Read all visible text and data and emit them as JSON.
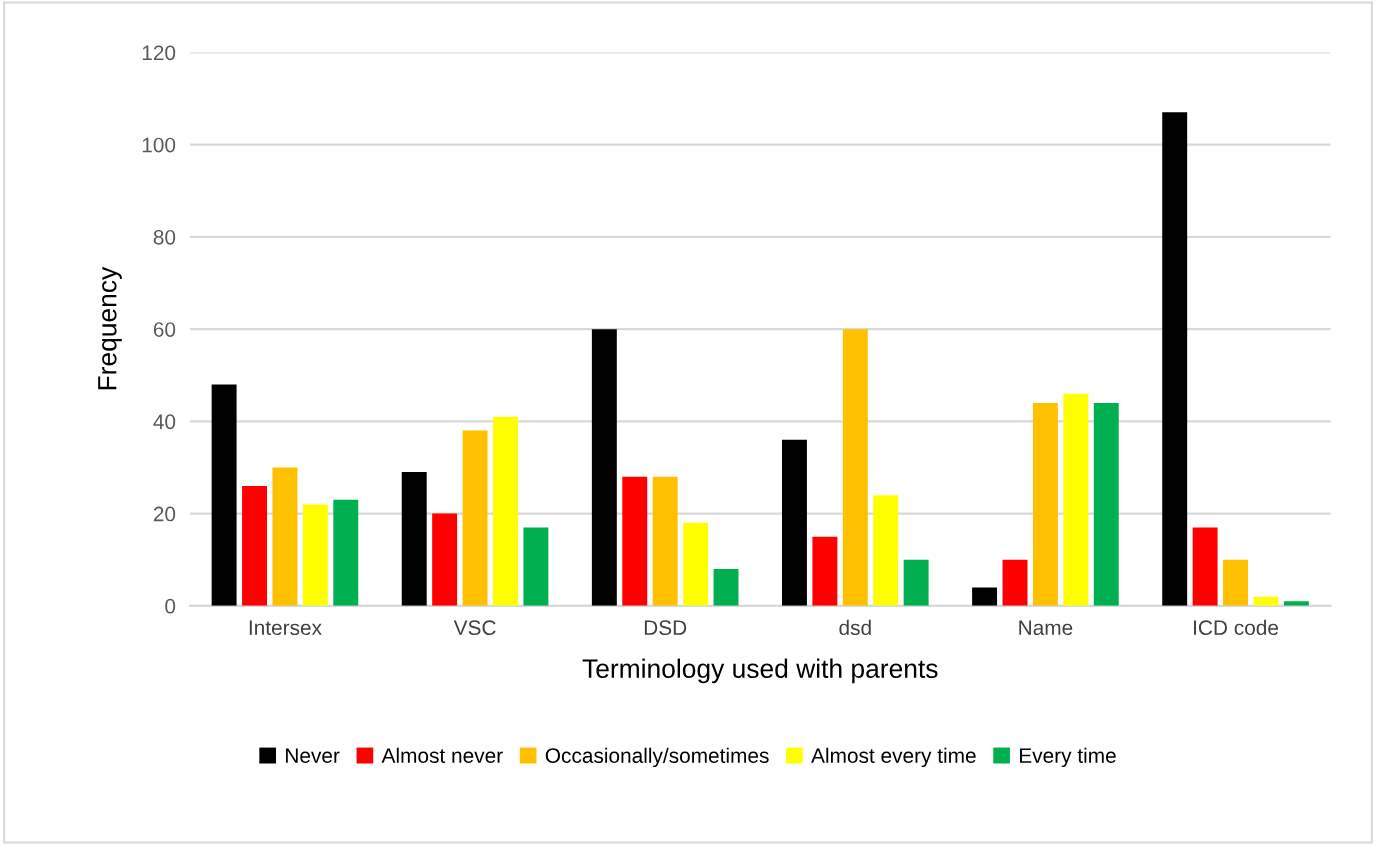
{
  "chart_data": {
    "type": "bar",
    "xlabel": "Terminology used with parents",
    "ylabel": "Frequency",
    "categories": [
      "Intersex",
      "VSC",
      "DSD",
      "dsd",
      "Name",
      "ICD code"
    ],
    "series": [
      {
        "name": "Never",
        "color": "#000000",
        "values": [
          48,
          29,
          60,
          36,
          4,
          107
        ]
      },
      {
        "name": "Almost never",
        "color": "#ff0000",
        "values": [
          26,
          20,
          28,
          15,
          10,
          17
        ]
      },
      {
        "name": "Occasionally/sometimes",
        "color": "#ffc000",
        "values": [
          30,
          38,
          28,
          60,
          44,
          10
        ]
      },
      {
        "name": "Almost every time",
        "color": "#ffff00",
        "values": [
          22,
          41,
          18,
          24,
          46,
          2
        ]
      },
      {
        "name": "Every time",
        "color": "#00b050",
        "values": [
          23,
          17,
          8,
          10,
          44,
          1
        ]
      }
    ],
    "ylim": [
      0,
      120
    ],
    "yticks": [
      0,
      20,
      40,
      60,
      80,
      100,
      120
    ],
    "grid": "y",
    "legend": "bottom"
  }
}
